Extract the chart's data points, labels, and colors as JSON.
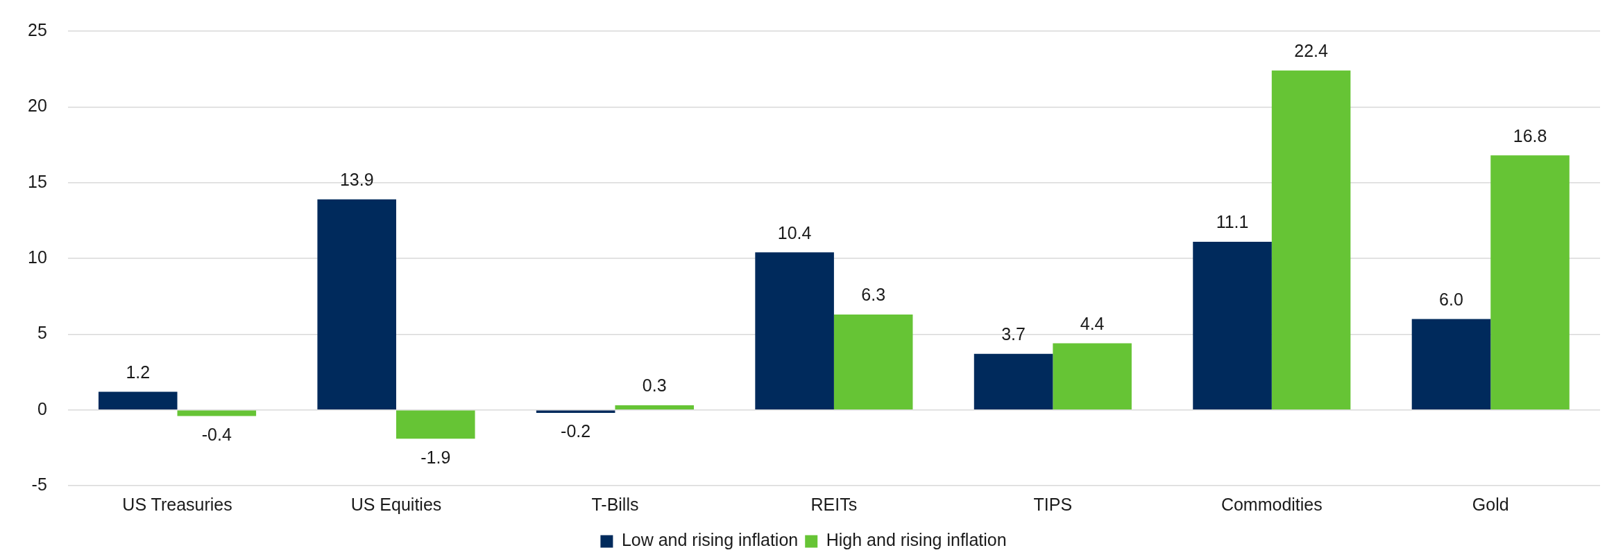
{
  "chart_data": {
    "type": "bar",
    "categories": [
      "US Treasuries",
      "US Equities",
      "T-Bills",
      "REITs",
      "TIPS",
      "Commodities",
      "Gold"
    ],
    "series": [
      {
        "name": "Low and rising inflation",
        "color": "#002a5c",
        "values": [
          1.2,
          13.9,
          -0.2,
          10.4,
          3.7,
          11.1,
          6.0
        ],
        "value_labels": [
          "1.2",
          "13.9",
          "-0.2",
          "10.4",
          "3.7",
          "11.1",
          "6.0"
        ]
      },
      {
        "name": "High and rising inflation",
        "color": "#66c435",
        "values": [
          -0.4,
          -1.9,
          0.3,
          6.3,
          4.4,
          22.4,
          16.8
        ],
        "value_labels": [
          "-0.4",
          "-1.9",
          "0.3",
          "6.3",
          "4.4",
          "22.4",
          "16.8"
        ]
      }
    ],
    "ylim": [
      -5,
      25
    ],
    "yticks": [
      -5,
      0,
      5,
      10,
      15,
      20,
      25
    ],
    "grid": "y",
    "legend": "bottom"
  }
}
